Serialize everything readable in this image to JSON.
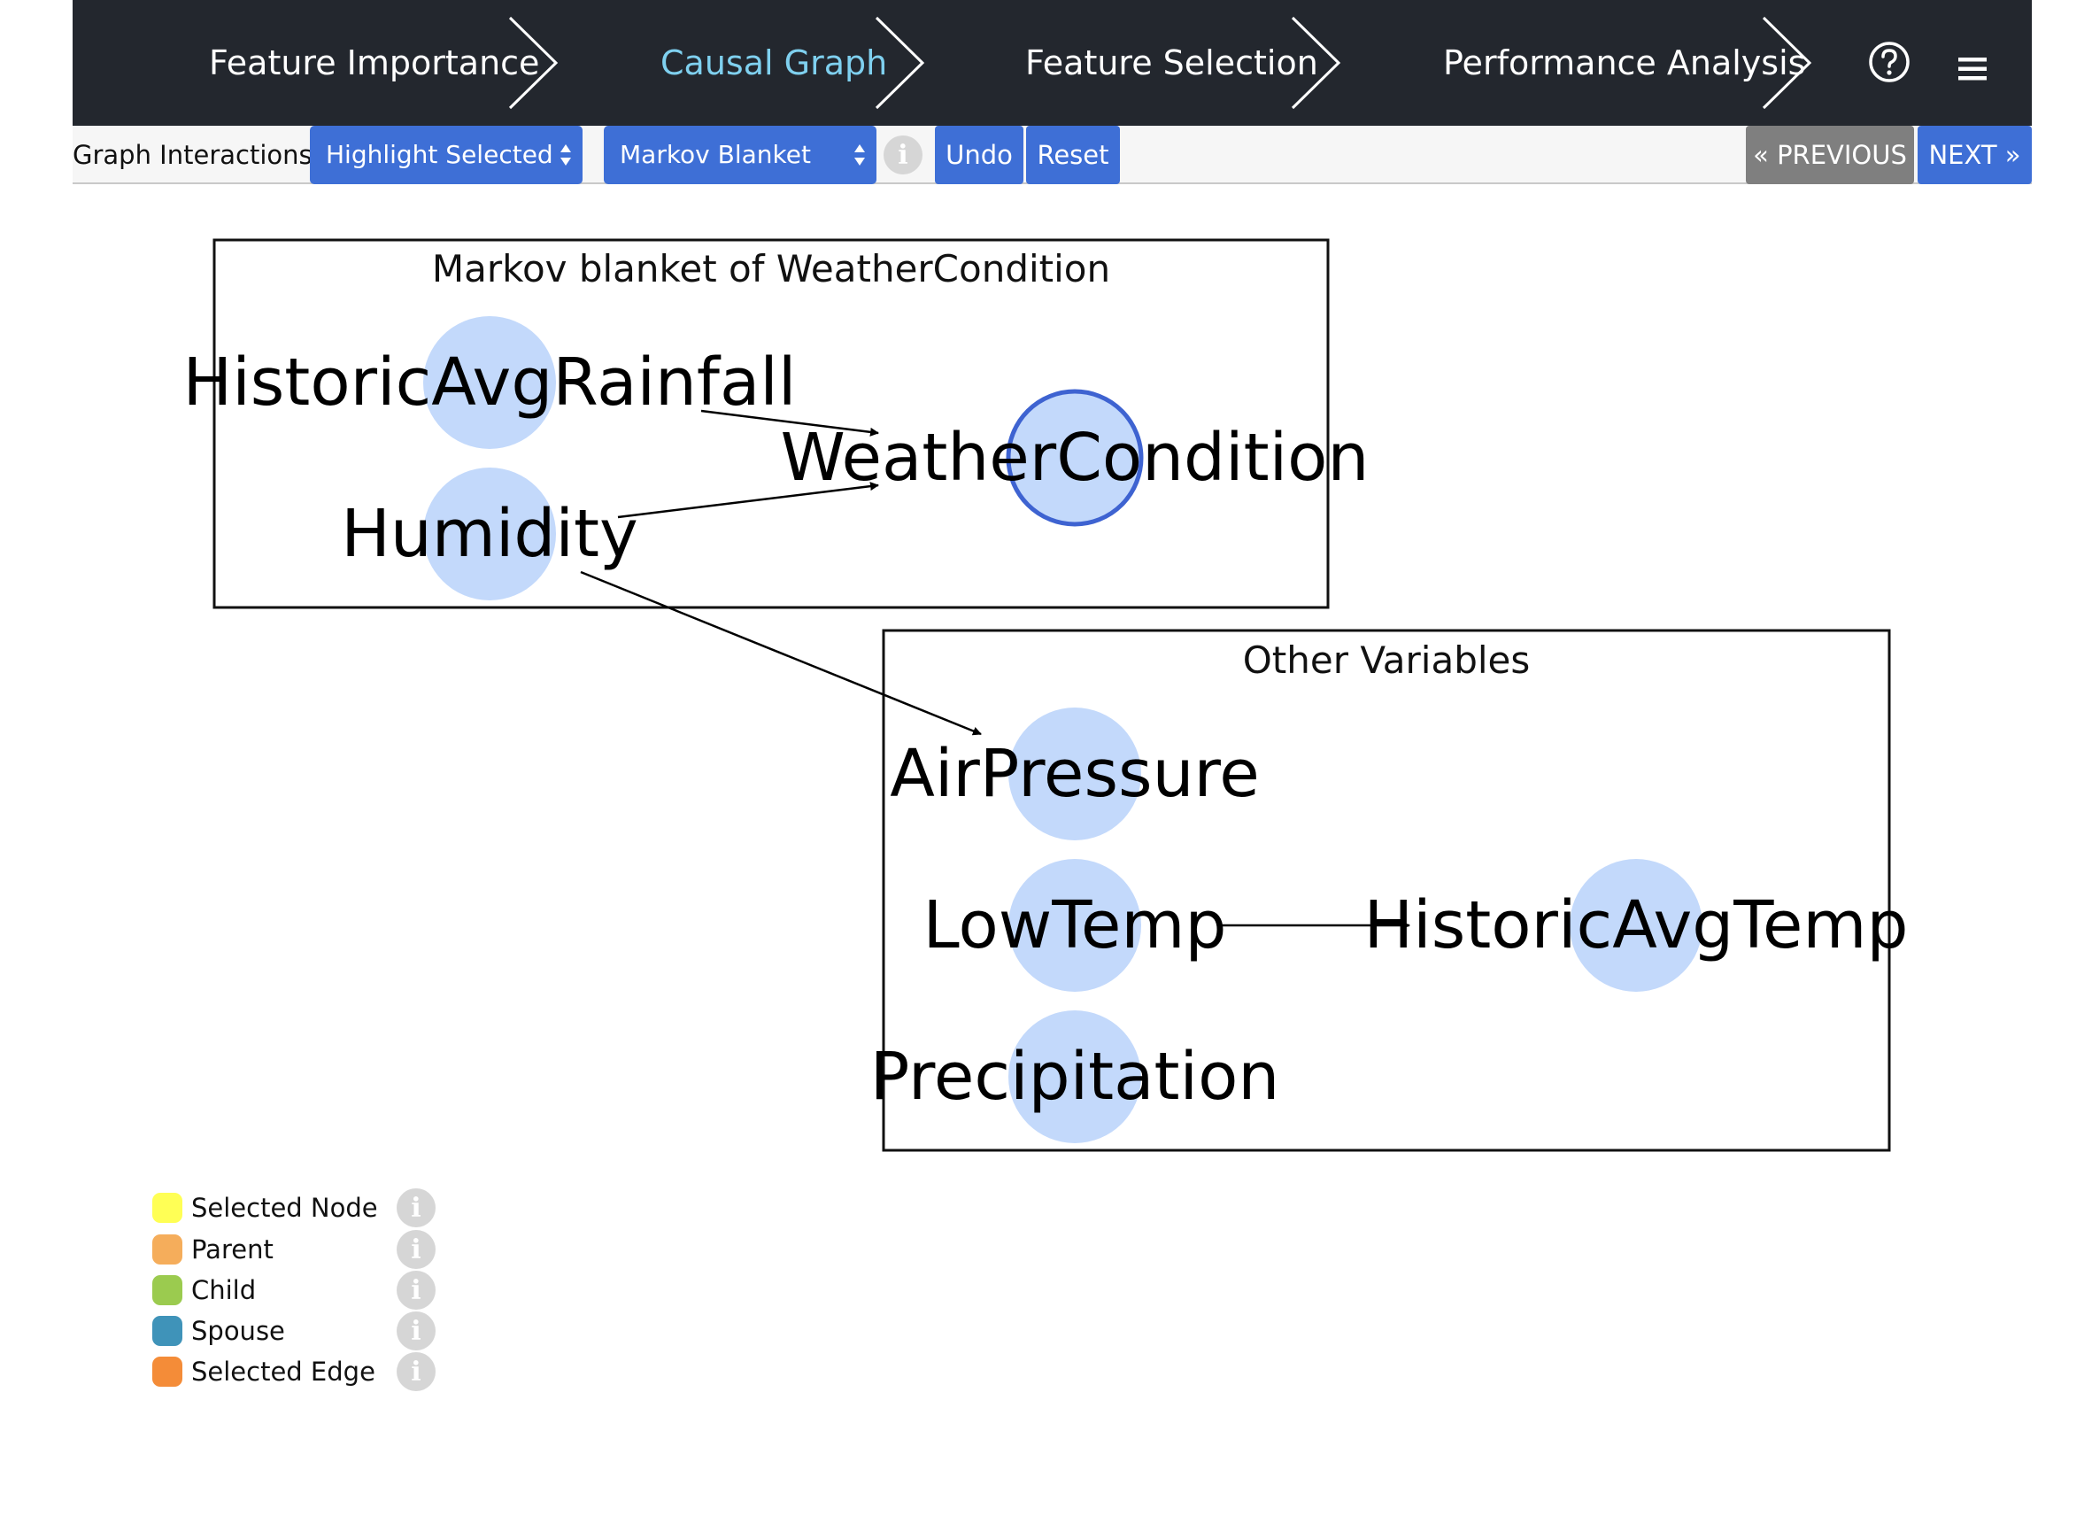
{
  "steps": [
    {
      "label": "Feature Importance",
      "active": false
    },
    {
      "label": "Causal Graph",
      "active": true
    },
    {
      "label": "Feature Selection",
      "active": false
    },
    {
      "label": "Performance Analysis",
      "active": false
    }
  ],
  "header_icons": [
    "help-circle-icon",
    "hamburger-menu-icon"
  ],
  "toolbar": {
    "label": "Graph Interactions:",
    "interaction_mode": "Highlight Selected",
    "view_mode": "Markov Blanket",
    "undo_label": "Undo",
    "reset_label": "Reset",
    "previous_label": "« PREVIOUS",
    "next_label": "NEXT »"
  },
  "graph": {
    "groups": [
      {
        "id": "markov",
        "label": "Markov blanket of WeatherCondition"
      },
      {
        "id": "other",
        "label": "Other Variables"
      }
    ],
    "nodes": [
      {
        "id": "HistoricAvgRainfall",
        "group": "markov",
        "selected": false
      },
      {
        "id": "Humidity",
        "group": "markov",
        "selected": false
      },
      {
        "id": "WeatherCondition",
        "group": "markov",
        "selected": true
      },
      {
        "id": "AirPressure",
        "group": "other",
        "selected": false
      },
      {
        "id": "LowTemp",
        "group": "other",
        "selected": false
      },
      {
        "id": "HistoricAvgTemp",
        "group": "other",
        "selected": false
      },
      {
        "id": "Precipitation",
        "group": "other",
        "selected": false
      }
    ],
    "edges": [
      {
        "from": "HistoricAvgRainfall",
        "to": "WeatherCondition"
      },
      {
        "from": "Humidity",
        "to": "WeatherCondition"
      },
      {
        "from": "Humidity",
        "to": "AirPressure"
      },
      {
        "from": "LowTemp",
        "to": "HistoricAvgTemp"
      }
    ]
  },
  "legend": [
    {
      "label": "Selected Node",
      "color": "#ffff55"
    },
    {
      "label": "Parent",
      "color": "#f5ad5b"
    },
    {
      "label": "Child",
      "color": "#9bcb4f"
    },
    {
      "label": "Spouse",
      "color": "#3f93b9"
    },
    {
      "label": "Selected Edge",
      "color": "#f48c38"
    }
  ],
  "colors": {
    "nav_bg": "#23272e",
    "active_step": "#7fd0ef",
    "button_blue": "#3e6fd6",
    "button_grey": "#7f7f7f",
    "node_fill": "#c3d9fb",
    "selected_border": "#3e63d1"
  }
}
